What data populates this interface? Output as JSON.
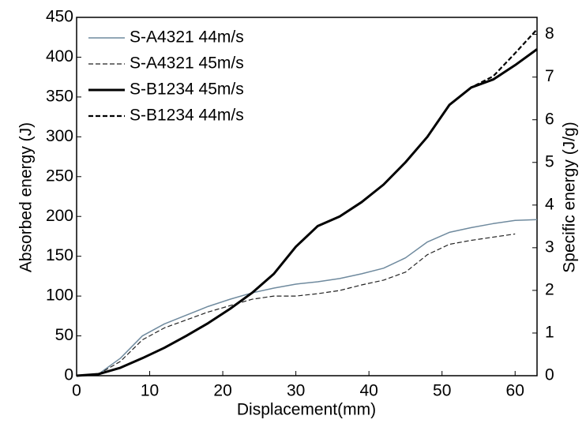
{
  "chart_data": {
    "type": "line",
    "x_label": "Displacement(mm)",
    "y_label": "Absorbed energy (J)",
    "y2_label": "Specific energy (J/g)",
    "x": [
      0,
      3,
      6,
      9,
      12,
      15,
      18,
      21,
      24,
      27,
      30,
      33,
      36,
      39,
      42,
      45,
      48,
      51,
      54,
      57,
      60,
      63
    ],
    "series": [
      {
        "name": "S-A4321 44m/s",
        "color": "#6f8a9e",
        "dash": "solid",
        "width": 1.5,
        "values": [
          0,
          2,
          22,
          50,
          65,
          76,
          87,
          96,
          104,
          110,
          115,
          118,
          122,
          128,
          135,
          148,
          168,
          180,
          186,
          191,
          195,
          196
        ]
      },
      {
        "name": "S-A4321 45m/s",
        "color": "#222222",
        "dash": "dashed",
        "width": 1.2,
        "values": [
          0,
          2,
          18,
          45,
          60,
          70,
          80,
          88,
          96,
          100,
          100,
          103,
          107,
          114,
          120,
          130,
          152,
          165,
          170,
          174,
          178,
          null
        ]
      },
      {
        "name": "S-B1234 45m/s",
        "color": "#000000",
        "dash": "solid",
        "width": 3,
        "values": [
          0,
          2,
          10,
          22,
          35,
          50,
          66,
          84,
          104,
          128,
          162,
          188,
          200,
          218,
          240,
          268,
          300,
          340,
          362,
          372,
          390,
          410
        ]
      },
      {
        "name": "S-B1234 44m/s",
        "color": "#000000",
        "dash": "dashed",
        "width": 2.2,
        "values": [
          0,
          2,
          10,
          22,
          35,
          50,
          66,
          84,
          104,
          128,
          162,
          188,
          200,
          218,
          240,
          268,
          300,
          340,
          362,
          376,
          405,
          435
        ]
      }
    ],
    "xlim": [
      0,
      63
    ],
    "xticks": [
      0,
      10,
      20,
      30,
      40,
      50,
      60
    ],
    "ylim": [
      0,
      450
    ],
    "yticks": [
      0,
      50,
      100,
      150,
      200,
      250,
      300,
      350,
      400,
      450
    ],
    "y2lim": [
      0,
      8.4
    ],
    "y2ticks": [
      0,
      1,
      2,
      3,
      4,
      5,
      6,
      7,
      8
    ],
    "legend": "upper left"
  }
}
